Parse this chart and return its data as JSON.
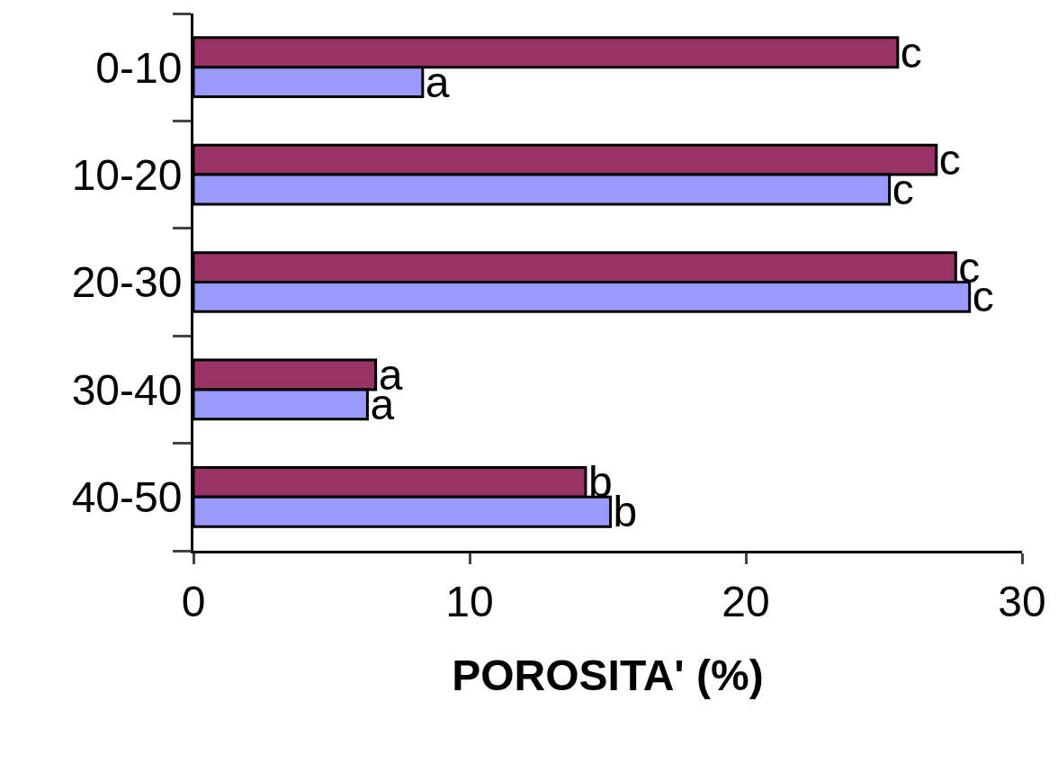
{
  "chart_data": {
    "type": "bar",
    "orientation": "horizontal",
    "xlabel": "POROSITA' (%)",
    "categories": [
      "0-10",
      "10-20",
      "20-30",
      "30-40",
      "40-50"
    ],
    "series": [
      {
        "color": "#993366",
        "values": [
          25.5,
          26.9,
          27.6,
          6.6,
          14.2
        ],
        "value_labels": [
          "c",
          "c",
          "c",
          "a",
          "b"
        ]
      },
      {
        "color": "#9999ff",
        "values": [
          8.3,
          25.2,
          28.1,
          6.3,
          15.1
        ],
        "value_labels": [
          "a",
          "c",
          "c",
          "a",
          "b"
        ]
      }
    ],
    "xlim": [
      0,
      30
    ],
    "xticks": [
      0,
      10,
      20,
      30
    ],
    "grid": false
  }
}
